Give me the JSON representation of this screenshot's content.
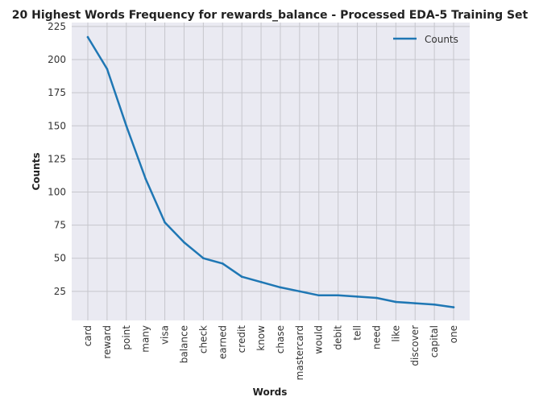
{
  "chart_data": {
    "type": "line",
    "title": "20 Highest Words Frequency for rewards_balance - Processed EDA-5 Training Set",
    "xlabel": "Words",
    "ylabel": "Counts",
    "categories": [
      "card",
      "reward",
      "point",
      "many",
      "visa",
      "balance",
      "check",
      "earned",
      "credit",
      "know",
      "chase",
      "mastercard",
      "would",
      "debit",
      "tell",
      "need",
      "like",
      "discover",
      "capital",
      "one"
    ],
    "series": [
      {
        "name": "Counts",
        "values": [
          217,
          193,
          150,
          110,
          77,
          62,
          50,
          46,
          36,
          32,
          28,
          25,
          22,
          22,
          21,
          20,
          17,
          16,
          15,
          13
        ]
      }
    ],
    "yticks": [
      25,
      50,
      75,
      100,
      125,
      150,
      175,
      200,
      225
    ],
    "ylim": [
      3,
      228
    ],
    "grid": true,
    "legend": "top-right",
    "colors": {
      "line": "#1f77b4",
      "plot_background": "#eaeaf2",
      "grid": "#c6c6cc"
    }
  }
}
